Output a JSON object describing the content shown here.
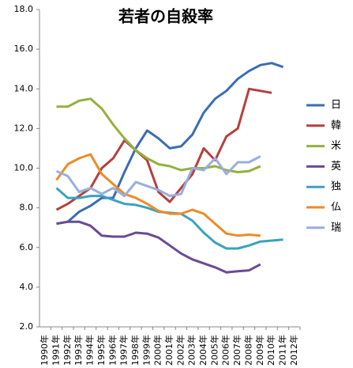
{
  "chart_data": {
    "type": "line",
    "title": "若者の自殺率",
    "categories": [
      "1990年",
      "1991年",
      "1992年",
      "1993年",
      "1994年",
      "1995年",
      "1996年",
      "1997年",
      "1998年",
      "1999年",
      "2000年",
      "2001年",
      "2002年",
      "2003年",
      "2004年",
      "2005年",
      "2006年",
      "2007年",
      "2008年",
      "2009年",
      "2010年",
      "2011年",
      "2012年"
    ],
    "ylim": [
      2,
      18
    ],
    "yticks": [
      {
        "value": 2,
        "label": "2.0"
      },
      {
        "value": 4,
        "label": "4.0"
      },
      {
        "value": 6,
        "label": "6.0"
      },
      {
        "value": 8,
        "label": "8.0"
      },
      {
        "value": 10,
        "label": "10.0"
      },
      {
        "value": 12,
        "label": "12.0"
      },
      {
        "value": 14,
        "label": "14.0"
      },
      {
        "value": 16,
        "label": "16.0"
      },
      {
        "value": 18,
        "label": "18.0"
      }
    ],
    "grid": false,
    "legend": "right",
    "series": [
      {
        "name": "日",
        "color": "#3b6cb5",
        "values": [
          null,
          7.2,
          7.3,
          7.8,
          8.1,
          8.5,
          8.5,
          9.8,
          11.0,
          11.9,
          11.5,
          11.0,
          11.1,
          11.7,
          12.8,
          13.5,
          13.9,
          14.5,
          14.9,
          15.2,
          15.3,
          15.1,
          null
        ]
      },
      {
        "name": "韓",
        "color": "#b5403d",
        "values": [
          null,
          7.9,
          8.2,
          8.6,
          9.0,
          10.0,
          10.5,
          11.4,
          10.9,
          10.4,
          8.8,
          8.3,
          9.0,
          9.7,
          11.0,
          10.4,
          11.6,
          12.0,
          14.0,
          13.9,
          13.8,
          null,
          null
        ]
      },
      {
        "name": "米",
        "color": "#94b13c",
        "values": [
          null,
          13.1,
          13.1,
          13.4,
          13.5,
          13.0,
          12.2,
          11.5,
          10.9,
          10.5,
          10.2,
          10.1,
          9.9,
          10.0,
          10.0,
          10.1,
          9.9,
          9.8,
          9.85,
          10.1,
          null,
          null,
          null
        ]
      },
      {
        "name": "英",
        "color": "#6a4a94",
        "values": [
          null,
          7.2,
          7.3,
          7.3,
          7.1,
          6.6,
          6.55,
          6.55,
          6.75,
          6.7,
          6.5,
          6.1,
          5.7,
          5.4,
          5.2,
          5.0,
          4.75,
          4.8,
          4.85,
          5.15,
          null,
          null,
          null
        ]
      },
      {
        "name": "独",
        "color": "#3ba2bd",
        "values": [
          null,
          9.0,
          8.5,
          8.5,
          8.6,
          8.6,
          8.4,
          8.2,
          8.15,
          8.0,
          7.8,
          7.75,
          7.7,
          7.35,
          6.75,
          6.25,
          5.95,
          5.95,
          6.1,
          6.3,
          6.35,
          6.4,
          null
        ]
      },
      {
        "name": "仏",
        "color": "#f08a28",
        "values": [
          null,
          9.4,
          10.2,
          10.5,
          10.7,
          9.7,
          9.2,
          8.7,
          8.5,
          8.2,
          7.85,
          7.7,
          7.7,
          7.9,
          7.7,
          7.2,
          6.7,
          6.6,
          6.65,
          6.6,
          null,
          null,
          null
        ]
      },
      {
        "name": "瑞",
        "color": "#97afdd",
        "values": [
          null,
          9.85,
          9.6,
          8.8,
          9.0,
          8.7,
          9.0,
          8.6,
          9.3,
          9.1,
          8.9,
          8.6,
          8.7,
          10.0,
          9.9,
          10.5,
          9.7,
          10.3,
          10.3,
          10.6,
          null,
          null,
          null
        ]
      }
    ]
  }
}
